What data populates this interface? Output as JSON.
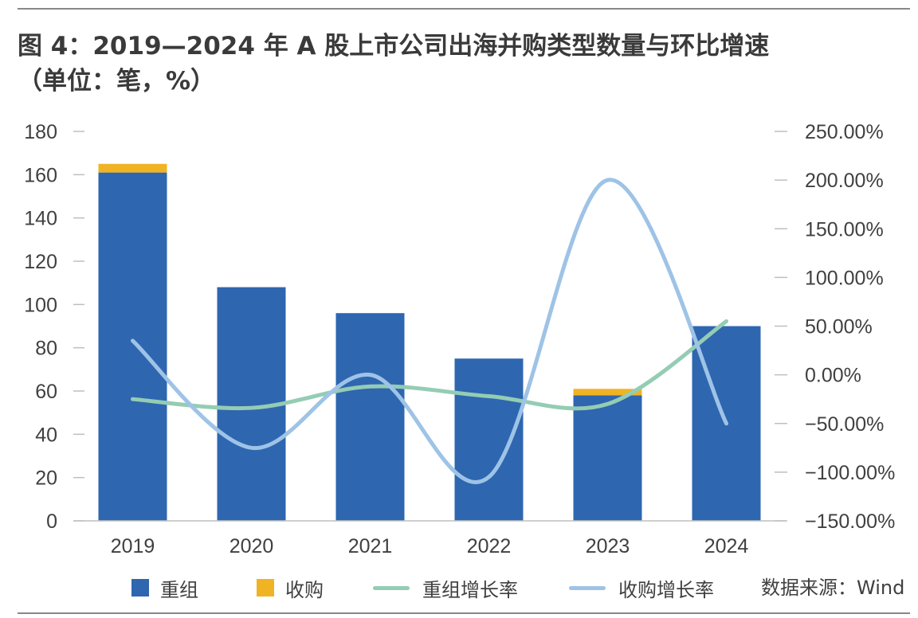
{
  "title": {
    "line1": "图 4：2019—2024 年 A 股上市公司出海并购类型数量与环比增速",
    "line2": "（单位：笔，%）"
  },
  "source": "数据来源：Wind",
  "colors": {
    "chonzu": "#2e66b0",
    "shougou": "#f0b323",
    "chonzu_growth": "#94ccb4",
    "shougou_growth": "#9ec3e6",
    "axis": "#bfbfbf",
    "text": "#404040"
  },
  "chart_data": {
    "type": "bar",
    "categories": [
      "2019",
      "2020",
      "2021",
      "2022",
      "2023",
      "2024"
    ],
    "series": [
      {
        "name": "重组",
        "type": "bar",
        "axis": "left",
        "stack": "total",
        "values": [
          161,
          108,
          96,
          75,
          58,
          90
        ]
      },
      {
        "name": "收购",
        "type": "bar",
        "axis": "left",
        "stack": "total",
        "values": [
          4,
          0,
          0,
          0,
          3,
          0
        ]
      },
      {
        "name": "重组增长率",
        "type": "line",
        "smooth": true,
        "axis": "right",
        "values": [
          -25,
          -34,
          -12,
          -22,
          -30,
          55
        ]
      },
      {
        "name": "收购增长率",
        "type": "line",
        "smooth": true,
        "axis": "right",
        "values": [
          35,
          -75,
          0,
          -105,
          200,
          -50
        ]
      }
    ],
    "y_left": {
      "min": 0,
      "max": 180,
      "step": 20,
      "ticks": [
        "0",
        "20",
        "40",
        "60",
        "80",
        "100",
        "120",
        "140",
        "160",
        "180"
      ]
    },
    "y_right": {
      "min": -150,
      "max": 250,
      "step": 50,
      "ticks": [
        "−150.00%",
        "−100.00%",
        "−50.00%",
        "0.00%",
        "50.00%",
        "100.00%",
        "150.00%",
        "200.00%",
        "250.00%"
      ]
    },
    "legend_position": "bottom",
    "grid": false
  }
}
